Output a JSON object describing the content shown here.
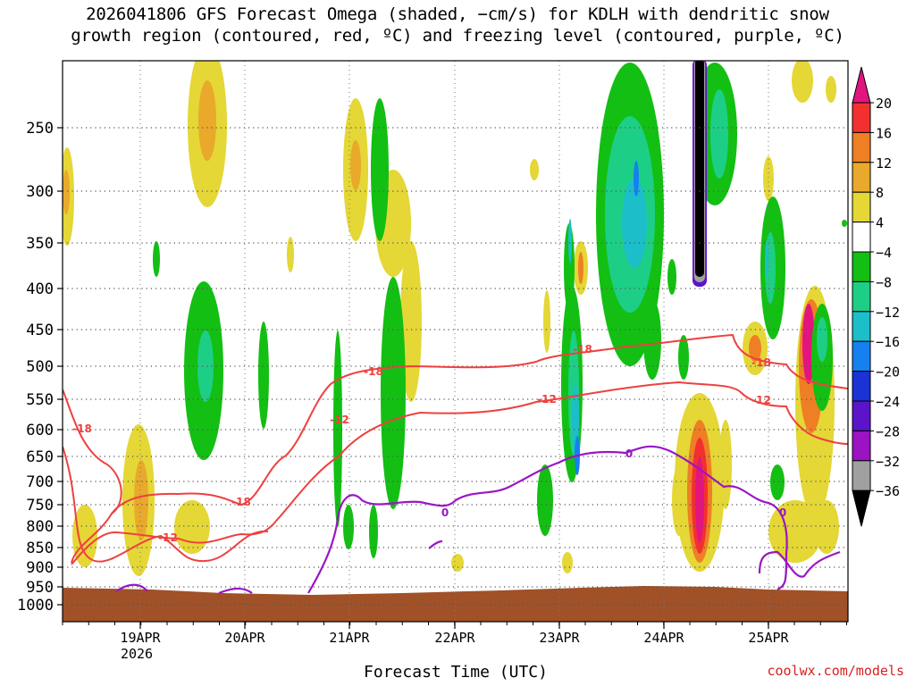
{
  "header": {
    "title_line1": "2026041806 GFS Forecast Omega (shaded, −cm/s) for KDLH with dendritic snow",
    "title_line2": "growth region (contoured, red, ºC) and freezing level (contoured, purple, ºC)"
  },
  "footer": {
    "xlabel": "Forecast Time (UTC)",
    "credit": "coolwx.com/models"
  },
  "chart_data": {
    "type": "heatmap",
    "title": "2026041806 GFS Forecast Omega (shaded, −cm/s) for KDLH with dendritic snow growth region (contoured, red, ºC) and freezing level (contoured, purple, ºC)",
    "xlabel": "Forecast Time (UTC)",
    "ylabel": "",
    "x_ticks": [
      "19APR",
      "20APR",
      "21APR",
      "22APR",
      "23APR",
      "24APR",
      "25APR"
    ],
    "x_tick_sub": [
      "2026",
      "",
      "",
      "",
      "",
      "",
      ""
    ],
    "y_ticks": [
      250,
      300,
      350,
      400,
      450,
      500,
      550,
      600,
      650,
      700,
      750,
      800,
      850,
      900,
      950,
      1000
    ],
    "colorbar": {
      "labels": [
        "20",
        "16",
        "12",
        "8",
        "4",
        "−4",
        "−8",
        "−12",
        "−16",
        "−20",
        "−24",
        "−28",
        "−32",
        "−36"
      ],
      "colors": [
        "#e2157f",
        "#f33030",
        "#ef7f24",
        "#e9a92b",
        "#e4d736",
        "#ffffff",
        "#13bf13",
        "#1dcf86",
        "#1cbeca",
        "#1580f0",
        "#1a32d6",
        "#5b14c9",
        "#9b13c3",
        "#a0a0a0",
        "#000000"
      ]
    },
    "contour_colors": {
      "dgz": "#ef4040",
      "freezing": "#9a16c4"
    },
    "contour_labels": {
      "dgz": [
        "-18",
        "-18",
        "-18",
        "-12",
        "-12",
        "-18",
        "-12",
        "-18",
        "-12"
      ],
      "freezing": [
        "0",
        "0",
        "0"
      ]
    },
    "grid": true,
    "terrain_color": "#a05128"
  }
}
